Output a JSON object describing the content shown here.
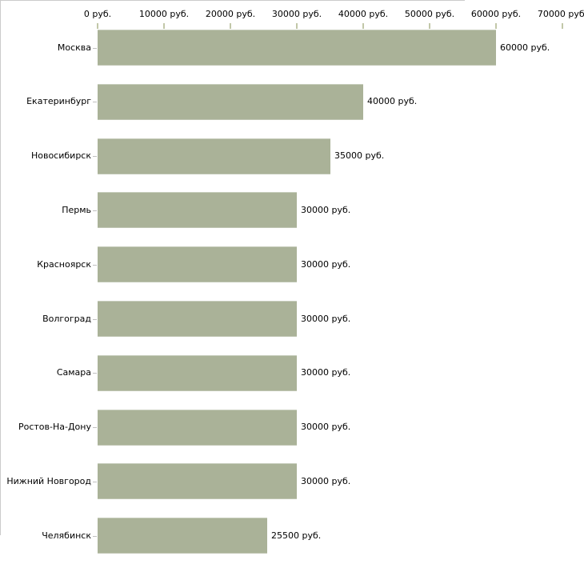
{
  "chart_data": {
    "type": "bar",
    "orientation": "horizontal",
    "title": "",
    "categories": [
      "Москва",
      "Екатеринбург",
      "Новосибирск",
      "Пермь",
      "Красноярск",
      "Волгоград",
      "Самара",
      "Ростов-На-Дону",
      "Нижний Новгород",
      "Челябинск"
    ],
    "values": [
      60000,
      40000,
      35000,
      30000,
      30000,
      30000,
      30000,
      30000,
      30000,
      25500
    ],
    "value_labels": [
      "60000 руб.",
      "40000 руб.",
      "35000 руб.",
      "30000 руб.",
      "30000 руб.",
      "30000 руб.",
      "30000 руб.",
      "30000 руб.",
      "30000 руб.",
      "25500 руб."
    ],
    "x_axis": {
      "min": 0,
      "max": 70000,
      "tick_step": 10000,
      "tick_labels": [
        "0 руб.",
        "10000 руб.",
        "20000 руб.",
        "30000 руб.",
        "40000 руб.",
        "50000 руб.",
        "60000 руб.",
        "70000 руб."
      ]
    },
    "unit": "руб.",
    "xlabel": "",
    "ylabel": "",
    "grid": false,
    "legend": false,
    "colors": {
      "bar_fill": "#aab298",
      "axis_line": "#cbcbcb",
      "x_tick_mark": "#c2c7a8",
      "y_tick_mark": "#c0c0c0",
      "text": "#000000",
      "background": "#ffffff"
    }
  }
}
